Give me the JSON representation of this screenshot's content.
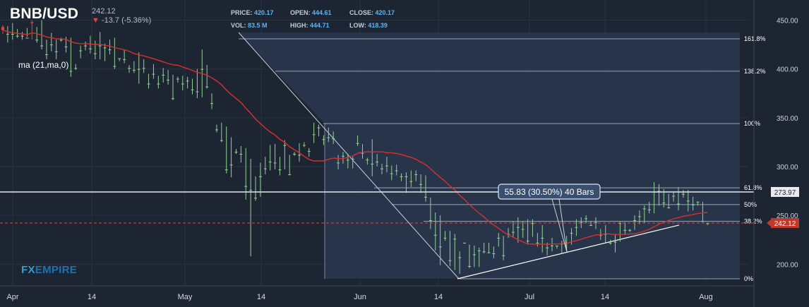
{
  "header": {
    "symbol": "BNB/USD",
    "price": "242.12",
    "change_arrow": "▼",
    "change": "-13.7 (-5.36%)",
    "ma_label": "ma (21,ma,0)"
  },
  "ohlc": [
    {
      "key": "PRICE:",
      "value": "420.17"
    },
    {
      "key": "OPEN:",
      "value": "444.61"
    },
    {
      "key": "CLOSE:",
      "value": "420.17"
    },
    {
      "key": "VOL:",
      "value": "83.5 M"
    },
    {
      "key": "HIGH:",
      "value": "444.71"
    },
    {
      "key": "LOW:",
      "value": "418.39"
    }
  ],
  "logo": {
    "part1": "FX",
    "part2": "EMPIRE"
  },
  "colors": {
    "background": "#1d2533",
    "up": "#93d096",
    "down": "#e2453f",
    "ma": "#d9302c",
    "fib_fill": "#2b3a52",
    "price_tag": "#c0392b"
  },
  "chart_data": {
    "type": "candlestick",
    "x_axis": {
      "ticks": [
        "Apr",
        "14",
        "May",
        "14",
        "Jun",
        "14",
        "Jul",
        "14",
        "Aug"
      ]
    },
    "y_axis": {
      "ticks": [
        "450.00",
        "400.00",
        "350.00",
        "300.00",
        "250.00",
        "200.00"
      ],
      "range": [
        180,
        458
      ]
    },
    "current_price": {
      "value": 242.12,
      "label": "242.12"
    },
    "resistance_line": {
      "value": 273.97,
      "label": "273.97"
    },
    "fibonacci": [
      {
        "label": "161.8%",
        "value": 430.9
      },
      {
        "label": "138.2%",
        "value": 397.7
      },
      {
        "label": "100%",
        "value": 344.0
      },
      {
        "label": "61.8%",
        "value": 278.2
      },
      {
        "label": "50%",
        "value": 261.0
      },
      {
        "label": "38.2%",
        "value": 243.9
      },
      {
        "label": "0%",
        "value": 185.0
      }
    ],
    "annotation": {
      "text": "55.83 (30.50%) 40 Bars"
    },
    "candles": [
      [
        443,
        445,
        440,
        436
      ],
      [
        436,
        444,
        436,
        427
      ],
      [
        436,
        447,
        436,
        430
      ],
      [
        434,
        441,
        434,
        432
      ],
      [
        434,
        438,
        434,
        430
      ],
      [
        432,
        442,
        432,
        433
      ],
      [
        448,
        450,
        447,
        430
      ],
      [
        430,
        443,
        430,
        427
      ],
      [
        424,
        450,
        424,
        420
      ],
      [
        415,
        430,
        415,
        410
      ],
      [
        425,
        437,
        425,
        418
      ],
      [
        418,
        430,
        418,
        410
      ],
      [
        430,
        432,
        430,
        428
      ],
      [
        423,
        433,
        423,
        417
      ],
      [
        398,
        432,
        398,
        392
      ],
      [
        401,
        405,
        401,
        399
      ],
      [
        419,
        424,
        419,
        411
      ],
      [
        424,
        428,
        424,
        419
      ],
      [
        421,
        434,
        421,
        416
      ],
      [
        416,
        429,
        416,
        410
      ],
      [
        424,
        438,
        424,
        410
      ],
      [
        422,
        426,
        422,
        408
      ],
      [
        420,
        430,
        420,
        415
      ],
      [
        403,
        432,
        403,
        400
      ],
      [
        411,
        411,
        411,
        408
      ],
      [
        410,
        420,
        410,
        406
      ],
      [
        401,
        404,
        401,
        396
      ],
      [
        399,
        408,
        399,
        396
      ],
      [
        400,
        417,
        400,
        385
      ],
      [
        401,
        410,
        401,
        396
      ],
      [
        385,
        395,
        385,
        380
      ],
      [
        395,
        405,
        395,
        390
      ],
      [
        385,
        393,
        385,
        380
      ],
      [
        394,
        401,
        394,
        386
      ],
      [
        389,
        399,
        389,
        384
      ],
      [
        370,
        394,
        370,
        368
      ],
      [
        390,
        392,
        390,
        386
      ],
      [
        385,
        393,
        385,
        378
      ],
      [
        388,
        392,
        388,
        380
      ],
      [
        379,
        390,
        379,
        374
      ],
      [
        377,
        400,
        377,
        370
      ],
      [
        400,
        420,
        400,
        371
      ],
      [
        382,
        404,
        382,
        380
      ],
      [
        365,
        375,
        365,
        359
      ],
      [
        338,
        343,
        338,
        335
      ],
      [
        327,
        345,
        327,
        325
      ],
      [
        297,
        341,
        297,
        293
      ],
      [
        302,
        330,
        302,
        289
      ],
      [
        315,
        318,
        315,
        313
      ],
      [
        313,
        321,
        313,
        304
      ],
      [
        280,
        319,
        280,
        266
      ],
      [
        276,
        308,
        276,
        208
      ],
      [
        268,
        290,
        268,
        265
      ],
      [
        290,
        304,
        290,
        269
      ],
      [
        298,
        310,
        298,
        292
      ],
      [
        305,
        322,
        305,
        296
      ],
      [
        304,
        323,
        304,
        297
      ],
      [
        297,
        310,
        297,
        291
      ],
      [
        322,
        327,
        322,
        297
      ],
      [
        292,
        312,
        292,
        291
      ],
      [
        313,
        315,
        313,
        311
      ],
      [
        312,
        324,
        312,
        305
      ],
      [
        322,
        325,
        322,
        320
      ],
      [
        316,
        319,
        316,
        310
      ],
      [
        333,
        345,
        333,
        324
      ],
      [
        340,
        343,
        340,
        331
      ],
      [
        328,
        332,
        328,
        322
      ],
      [
        330,
        340,
        330,
        325
      ],
      [
        329,
        336,
        329,
        323
      ],
      [
        304,
        312,
        304,
        297
      ],
      [
        311,
        315,
        311,
        303
      ],
      [
        307,
        313,
        307,
        298
      ],
      [
        308,
        310,
        308,
        298
      ],
      [
        324,
        332,
        324,
        321
      ],
      [
        314,
        323,
        314,
        308
      ],
      [
        307,
        309,
        307,
        302
      ],
      [
        303,
        328,
        303,
        290
      ],
      [
        305,
        313,
        305,
        300
      ],
      [
        298,
        303,
        298,
        292
      ],
      [
        301,
        310,
        301,
        294
      ],
      [
        293,
        301,
        293,
        286
      ],
      [
        296,
        302,
        296,
        291
      ],
      [
        290,
        293,
        290,
        285
      ],
      [
        290,
        294,
        290,
        273
      ],
      [
        285,
        296,
        285,
        279
      ],
      [
        292,
        296,
        292,
        285
      ],
      [
        282,
        292,
        282,
        273
      ],
      [
        269,
        291,
        269,
        264
      ],
      [
        245,
        268,
        245,
        236
      ],
      [
        230,
        253,
        230,
        214
      ],
      [
        218,
        250,
        218,
        199
      ],
      [
        227,
        234,
        227,
        224
      ],
      [
        204,
        234,
        204,
        198
      ],
      [
        226,
        231,
        226,
        194
      ],
      [
        207,
        213,
        207,
        190
      ],
      [
        222,
        222,
        222,
        221
      ],
      [
        198,
        220,
        198,
        196
      ],
      [
        210,
        219,
        210,
        197
      ],
      [
        214,
        217,
        214,
        197
      ],
      [
        213,
        222,
        213,
        211
      ],
      [
        212,
        222,
        212,
        211
      ],
      [
        211,
        218,
        211,
        206
      ],
      [
        227,
        232,
        227,
        218
      ],
      [
        209,
        229,
        209,
        204
      ],
      [
        231,
        237,
        231,
        227
      ],
      [
        233,
        244,
        233,
        227
      ],
      [
        238,
        248,
        238,
        222
      ],
      [
        236,
        244,
        236,
        227
      ],
      [
        224,
        246,
        224,
        220
      ],
      [
        242,
        246,
        242,
        228
      ],
      [
        222,
        232,
        222,
        218
      ],
      [
        227,
        240,
        227,
        212
      ],
      [
        217,
        222,
        217,
        209
      ],
      [
        219,
        227,
        219,
        213
      ],
      [
        219,
        219,
        219,
        216
      ],
      [
        221,
        224,
        221,
        211
      ],
      [
        222,
        229,
        222,
        214
      ],
      [
        232,
        237,
        232,
        220
      ],
      [
        238,
        246,
        238,
        229
      ],
      [
        243,
        248,
        243,
        237
      ],
      [
        247,
        250,
        247,
        242
      ],
      [
        240,
        244,
        240,
        239
      ],
      [
        243,
        248,
        243,
        236
      ],
      [
        230,
        236,
        230,
        225
      ],
      [
        231,
        240,
        231,
        222
      ],
      [
        222,
        225,
        222,
        220
      ],
      [
        223,
        231,
        223,
        212
      ],
      [
        242,
        244,
        242,
        223
      ],
      [
        235,
        243,
        235,
        230
      ],
      [
        235,
        236,
        235,
        233
      ],
      [
        245,
        250,
        245,
        235
      ],
      [
        249,
        255,
        249,
        241
      ],
      [
        257,
        260,
        257,
        242
      ],
      [
        256,
        264,
        256,
        252
      ],
      [
        274,
        284,
        274,
        252
      ],
      [
        275,
        282,
        275,
        260
      ],
      [
        263,
        277,
        263,
        258
      ],
      [
        258,
        272,
        258,
        257
      ],
      [
        270,
        274,
        270,
        264
      ],
      [
        262,
        279,
        262,
        255
      ],
      [
        272,
        276,
        272,
        268
      ],
      [
        265,
        276,
        265,
        254
      ],
      [
        261,
        269,
        261,
        255
      ],
      [
        264,
        264,
        264,
        260
      ],
      [
        244,
        264,
        244,
        244
      ],
      [
        242,
        242,
        242,
        240
      ]
    ]
  }
}
